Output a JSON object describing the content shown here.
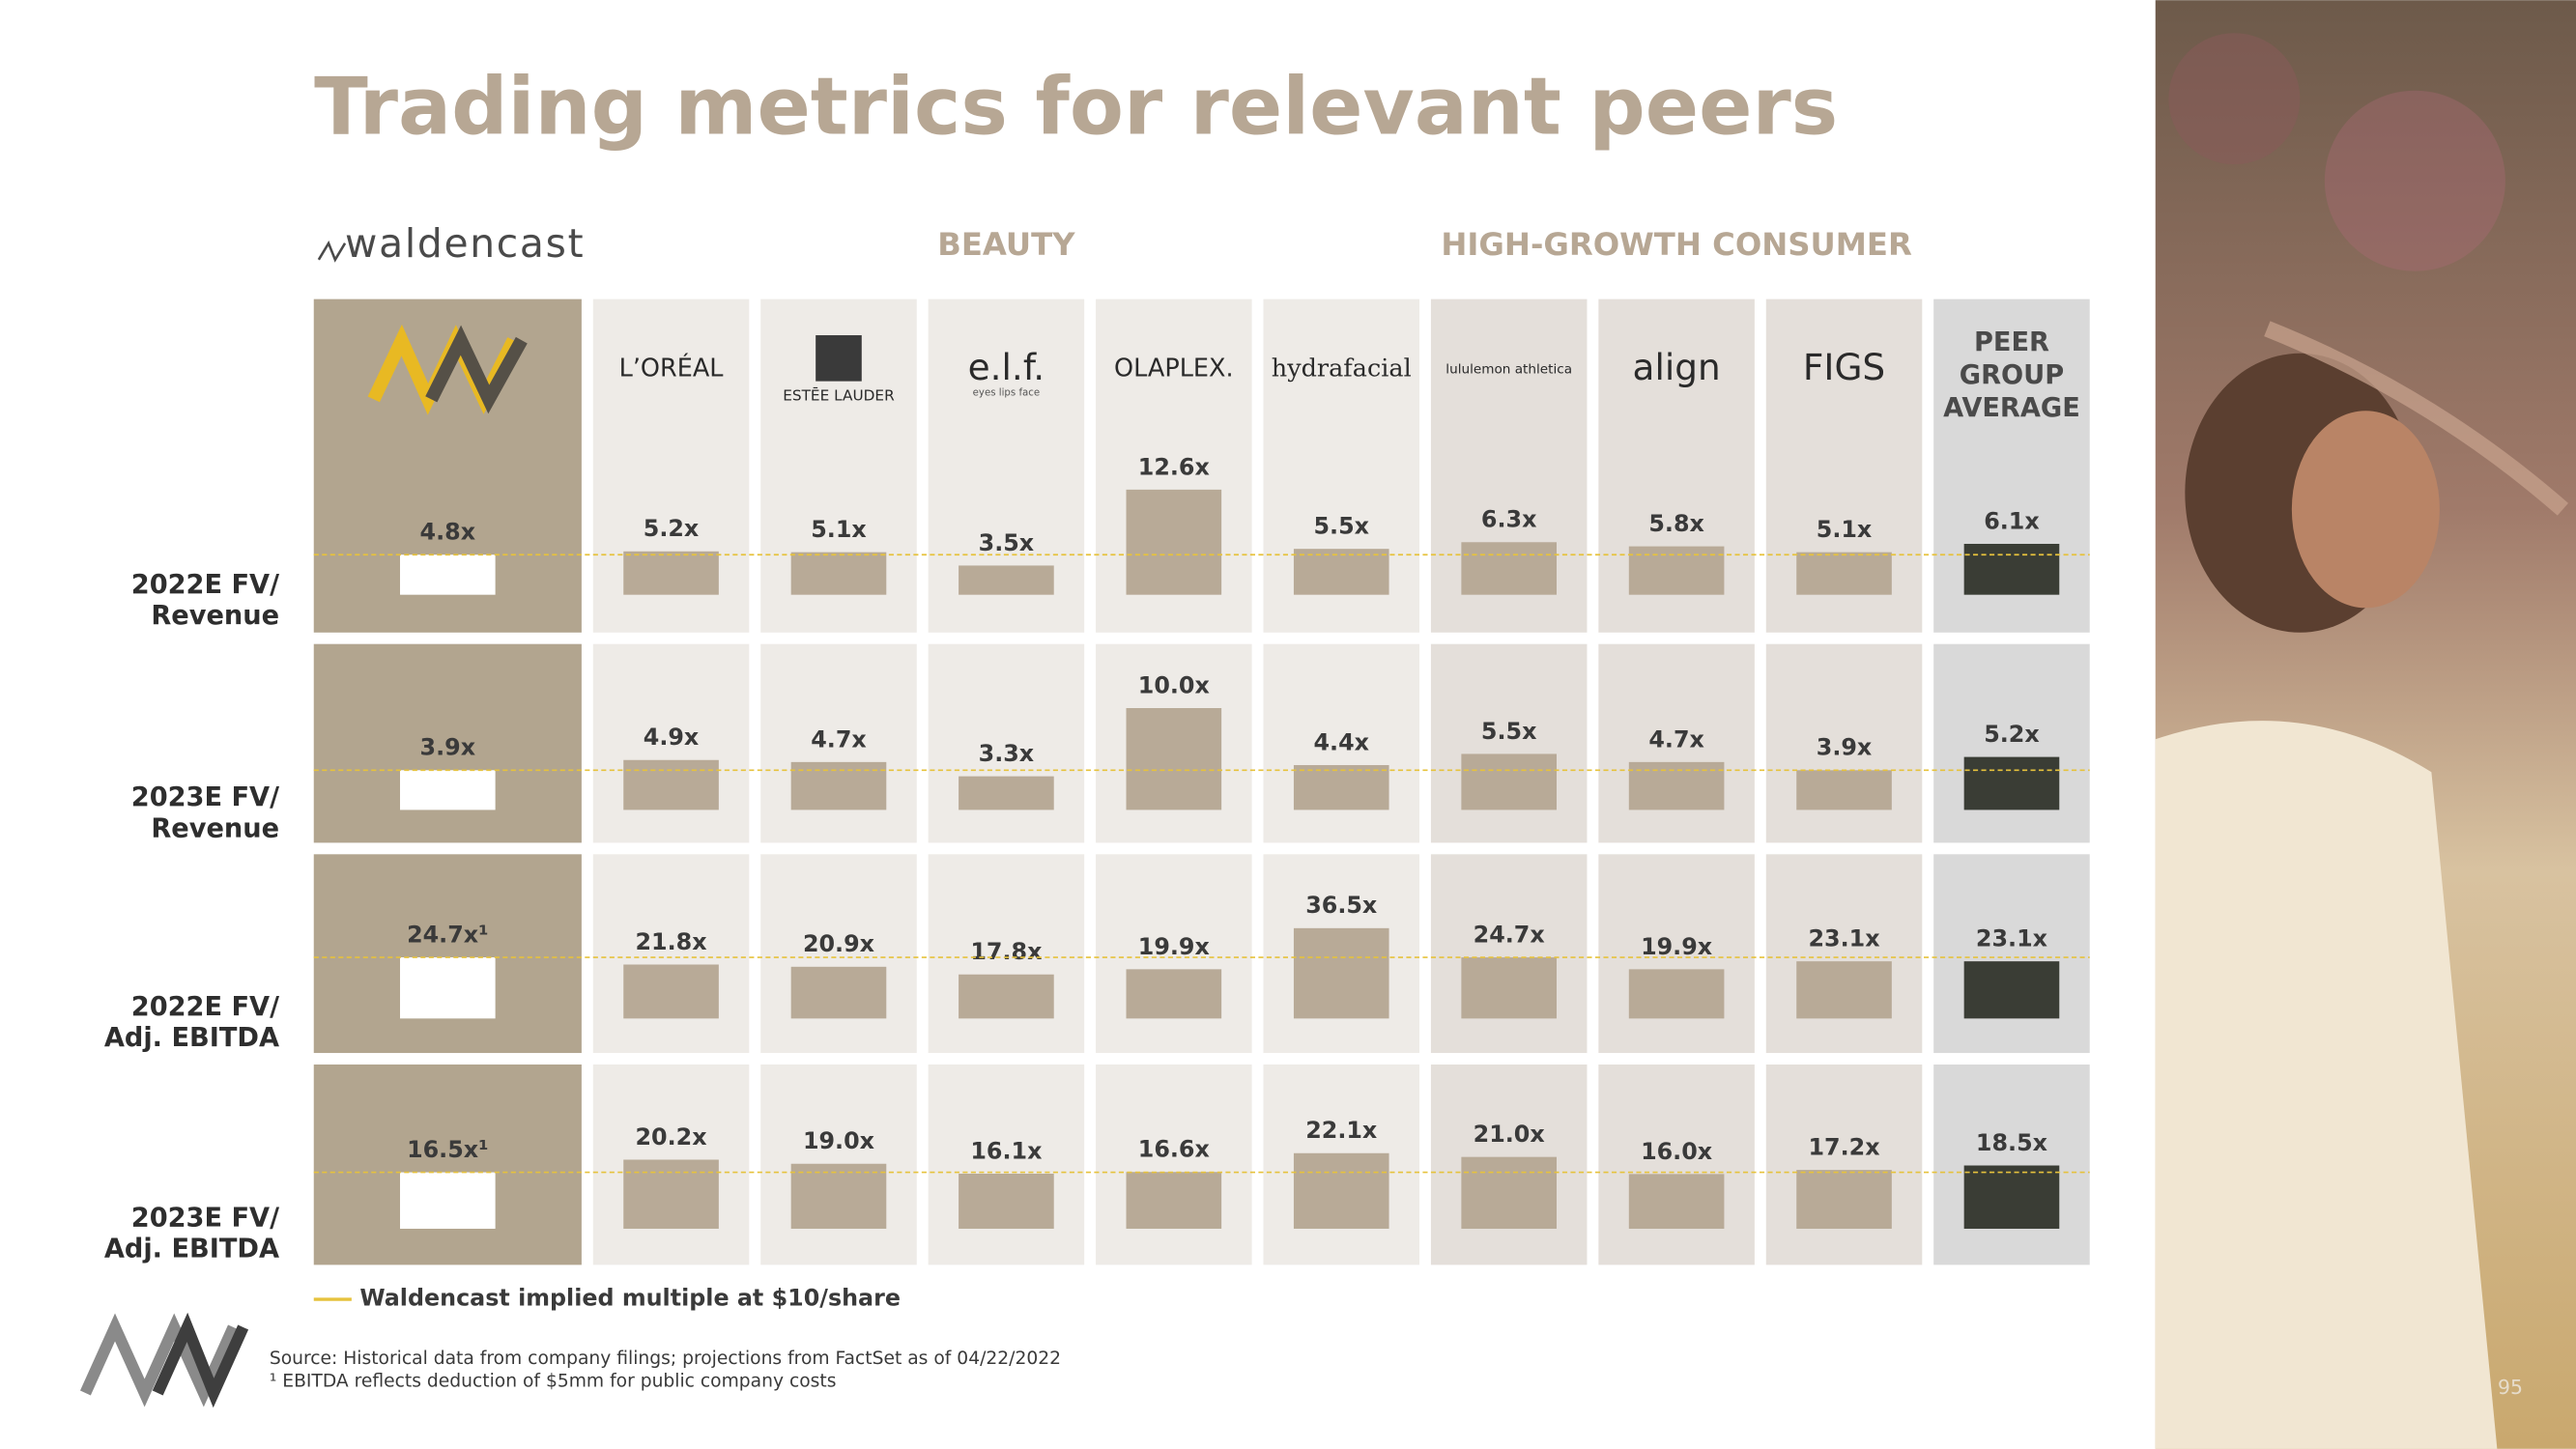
{
  "title": "Trading metrics for relevant peers",
  "brand": "waldencast",
  "groups": [
    "BEAUTY",
    "HIGH-GROWTH CONSUMER"
  ],
  "columns": [
    null,
    {
      "name": "L’ORÉAL"
    },
    {
      "name": "ESTĒE LAUDER"
    },
    {
      "name": "e.l.f.",
      "tagline": "eyes lips face"
    },
    {
      "name": "OLAPLEX."
    },
    {
      "name": "hydrafacial"
    },
    {
      "name": "lululemon athletica"
    },
    {
      "name": "align"
    },
    {
      "name": "FIGS"
    },
    {
      "name": [
        "PEER",
        "GROUP",
        "AVERAGE"
      ]
    }
  ],
  "rows": [
    {
      "label": [
        "2022E FV/",
        "Revenue"
      ],
      "values": [
        4.8,
        5.2,
        5.1,
        3.5,
        12.6,
        5.5,
        6.3,
        5.8,
        5.1,
        6.1
      ],
      "value_labels": [
        "4.8x",
        "5.2x",
        "5.1x",
        "3.5x",
        "12.6x",
        "5.5x",
        "6.3x",
        "5.8x",
        "5.1x",
        "6.1x"
      ]
    },
    {
      "label": [
        "2023E FV/",
        "Revenue"
      ],
      "values": [
        3.9,
        4.9,
        4.7,
        3.3,
        10.0,
        4.4,
        5.5,
        4.7,
        3.9,
        5.2
      ],
      "value_labels": [
        "3.9x",
        "4.9x",
        "4.7x",
        "3.3x",
        "10.0x",
        "4.4x",
        "5.5x",
        "4.7x",
        "3.9x",
        "5.2x"
      ]
    },
    {
      "label": [
        "2022E FV/",
        "Adj. EBITDA"
      ],
      "values": [
        24.7,
        21.8,
        20.9,
        17.8,
        19.9,
        36.5,
        24.7,
        19.9,
        23.1,
        23.1
      ],
      "value_labels": [
        "24.7x¹",
        "21.8x",
        "20.9x",
        "17.8x",
        "19.9x",
        "36.5x",
        "24.7x",
        "19.9x",
        "23.1x",
        "23.1x"
      ]
    },
    {
      "label": [
        "2023E FV/",
        "Adj. EBITDA"
      ],
      "values": [
        16.5,
        20.2,
        19.0,
        16.1,
        16.6,
        22.1,
        21.0,
        16.0,
        17.2,
        18.5
      ],
      "value_labels": [
        "16.5x¹",
        "20.2x",
        "19.0x",
        "16.1x",
        "16.6x",
        "22.1x",
        "21.0x",
        "16.0x",
        "17.2x",
        "18.5x"
      ]
    }
  ],
  "legend": "Waldencast implied multiple at $10/share",
  "footnotes": [
    "Source: Historical data from company filings; projections from FactSet as of 04/22/2022",
    "¹ EBITDA reflects deduction of $5mm for public company costs"
  ],
  "page_number": "95"
}
